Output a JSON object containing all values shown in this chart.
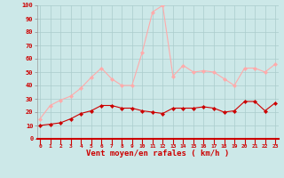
{
  "hours": [
    0,
    1,
    2,
    3,
    4,
    5,
    6,
    7,
    8,
    9,
    10,
    11,
    12,
    13,
    14,
    15,
    16,
    17,
    18,
    19,
    20,
    21,
    22,
    23
  ],
  "wind_avg": [
    10,
    11,
    12,
    15,
    19,
    21,
    25,
    25,
    23,
    23,
    21,
    20,
    19,
    23,
    23,
    23,
    24,
    23,
    20,
    21,
    28,
    28,
    21,
    27
  ],
  "wind_gust": [
    15,
    25,
    29,
    32,
    38,
    46,
    53,
    45,
    40,
    40,
    65,
    95,
    100,
    47,
    55,
    50,
    51,
    50,
    45,
    40,
    53,
    53,
    50,
    56
  ],
  "avg_color": "#cc0000",
  "gust_color": "#ffaaaa",
  "bg_color": "#cce8e8",
  "grid_color": "#aacccc",
  "xlabel": "Vent moyen/en rafales ( km/h )",
  "ylim": [
    0,
    100
  ],
  "yticks": [
    0,
    10,
    20,
    30,
    40,
    50,
    60,
    70,
    80,
    90,
    100
  ],
  "xticks": [
    0,
    1,
    2,
    3,
    4,
    5,
    6,
    7,
    8,
    9,
    10,
    11,
    12,
    13,
    14,
    15,
    16,
    17,
    18,
    19,
    20,
    21,
    22,
    23
  ]
}
